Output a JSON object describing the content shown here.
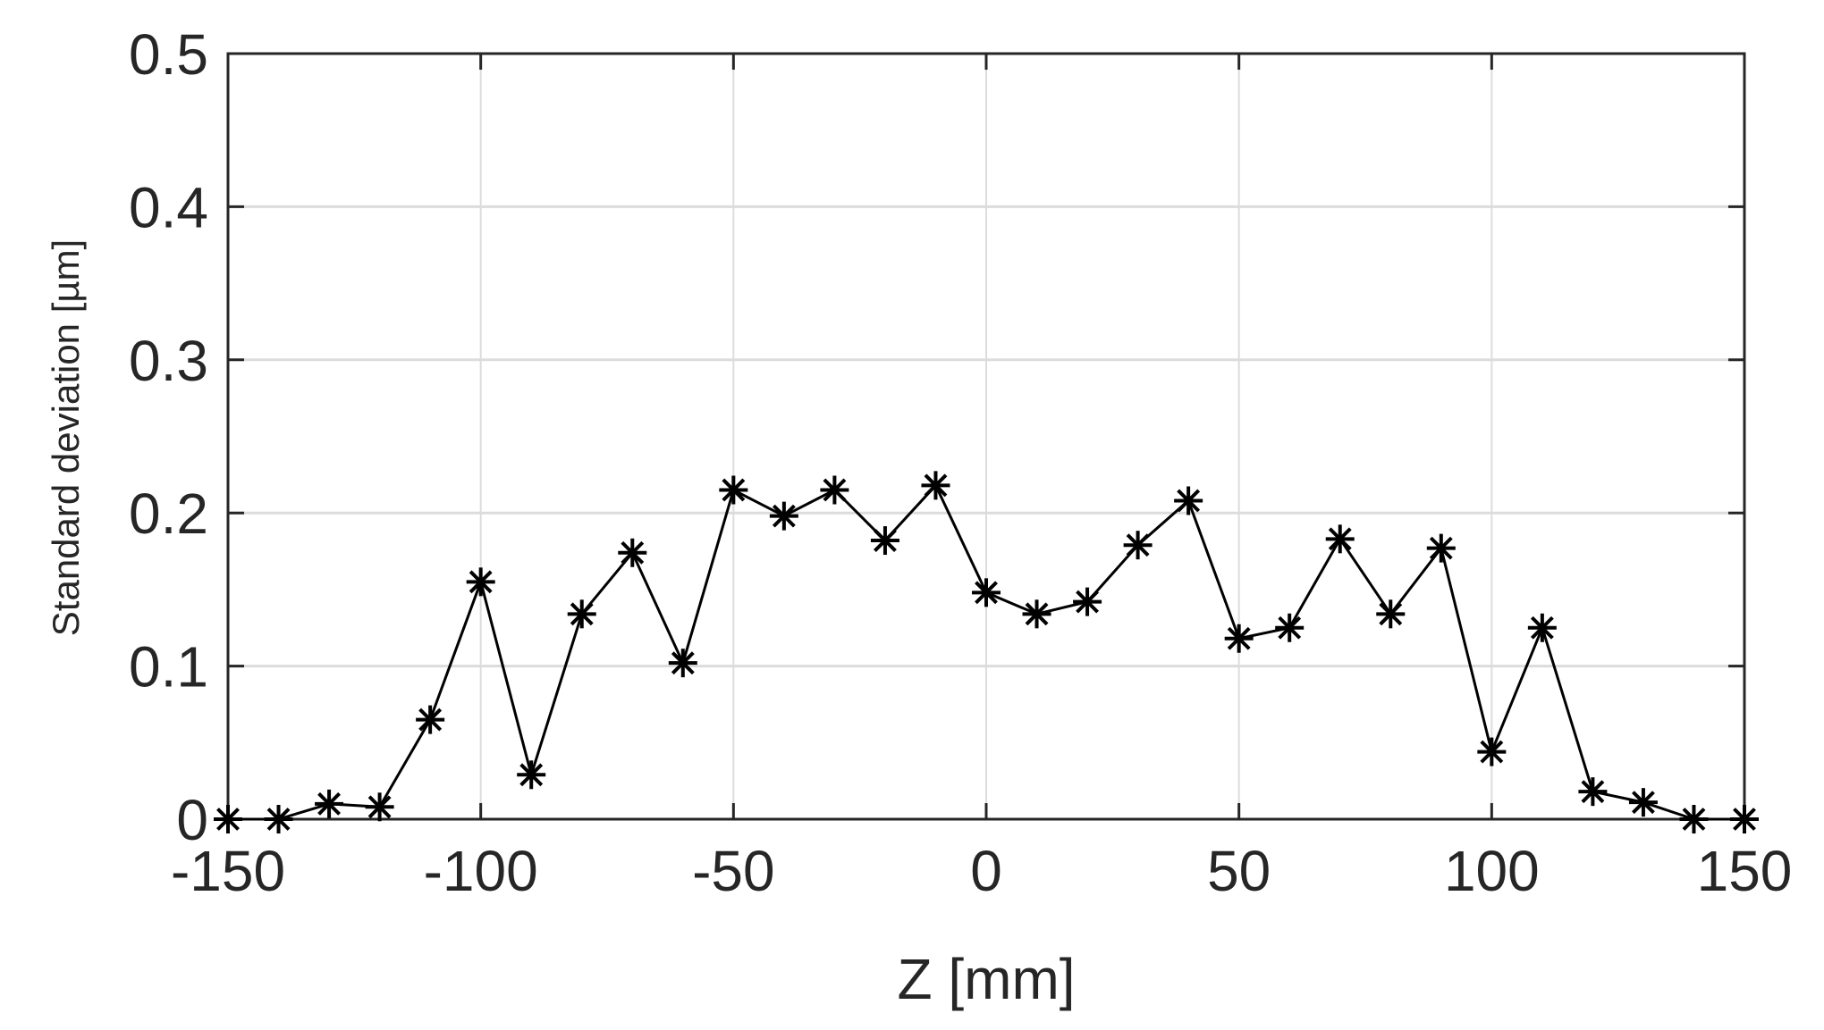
{
  "chart_data": {
    "type": "line",
    "title": "",
    "xlabel": "Z [mm]",
    "ylabel": "Standard deviation [µm]",
    "xlim": [
      -150,
      150
    ],
    "ylim": [
      0,
      0.5
    ],
    "x_ticks": [
      -150,
      -100,
      -50,
      0,
      50,
      100,
      150
    ],
    "x_tick_labels": [
      "-150",
      "-100",
      "-50",
      "0",
      "50",
      "100",
      "150"
    ],
    "y_ticks": [
      0,
      0.1,
      0.2,
      0.3,
      0.4,
      0.5
    ],
    "y_tick_labels": [
      "0",
      "0.1",
      "0.2",
      "0.3",
      "0.4",
      "0.5"
    ],
    "grid": true,
    "legend": null,
    "marker": "asterisk",
    "line_color": "#000000",
    "x": [
      -150,
      -140,
      -130,
      -120,
      -110,
      -100,
      -90,
      -80,
      -70,
      -60,
      -50,
      -40,
      -30,
      -20,
      -10,
      0,
      10,
      20,
      30,
      40,
      50,
      60,
      70,
      80,
      90,
      100,
      110,
      120,
      130,
      140,
      150
    ],
    "series": [
      {
        "name": "Standard deviation",
        "values": [
          0,
          0,
          0.01,
          0.008,
          0.065,
          0.155,
          0.029,
          0.134,
          0.174,
          0.102,
          0.215,
          0.198,
          0.215,
          0.182,
          0.218,
          0.148,
          0.134,
          0.142,
          0.179,
          0.208,
          0.118,
          0.125,
          0.183,
          0.134,
          0.177,
          0.044,
          0.125,
          0.018,
          0.011,
          0,
          0
        ]
      }
    ]
  }
}
